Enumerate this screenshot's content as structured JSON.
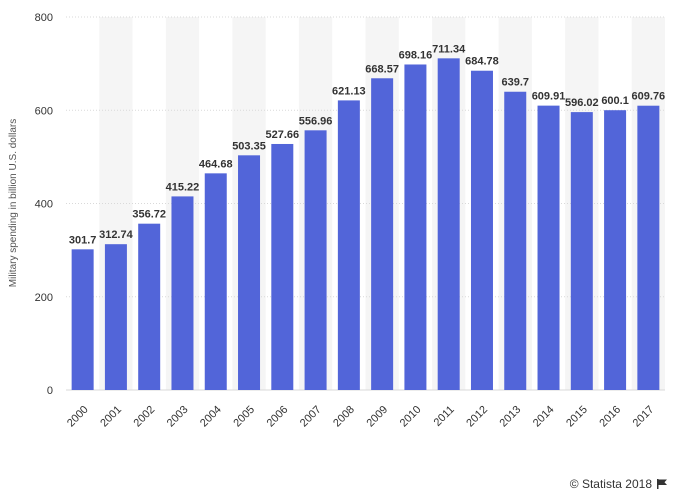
{
  "chart_data": {
    "type": "bar",
    "categories": [
      "2000",
      "2001",
      "2002",
      "2003",
      "2004",
      "2005",
      "2006",
      "2007",
      "2008",
      "2009",
      "2010",
      "2011",
      "2012",
      "2013",
      "2014",
      "2015",
      "2016",
      "2017"
    ],
    "values": [
      301.7,
      312.74,
      356.72,
      415.22,
      464.68,
      503.35,
      527.66,
      556.96,
      621.13,
      668.57,
      698.16,
      711.34,
      684.78,
      639.7,
      609.91,
      596.02,
      600.1,
      609.76
    ],
    "value_labels": [
      "301.7",
      "312.74",
      "356.72",
      "415.22",
      "464.68",
      "503.35",
      "527.66",
      "556.96",
      "621.13",
      "668.57",
      "698.16",
      "711.34",
      "684.78",
      "639.7",
      "609.91",
      "596.02",
      "600.1",
      "609.76"
    ],
    "ylabel": "Military spending in billion U.S. dollars",
    "xlabel": "",
    "ylim": [
      0,
      800
    ],
    "yticks": [
      0,
      200,
      400,
      600,
      800
    ],
    "grid": true,
    "bar_color": "#5265d9",
    "band_color": "#f5f5f5",
    "grid_color": "#d9d9d9"
  },
  "footer": {
    "credit": "© Statista 2018",
    "icon": "flag-icon"
  }
}
